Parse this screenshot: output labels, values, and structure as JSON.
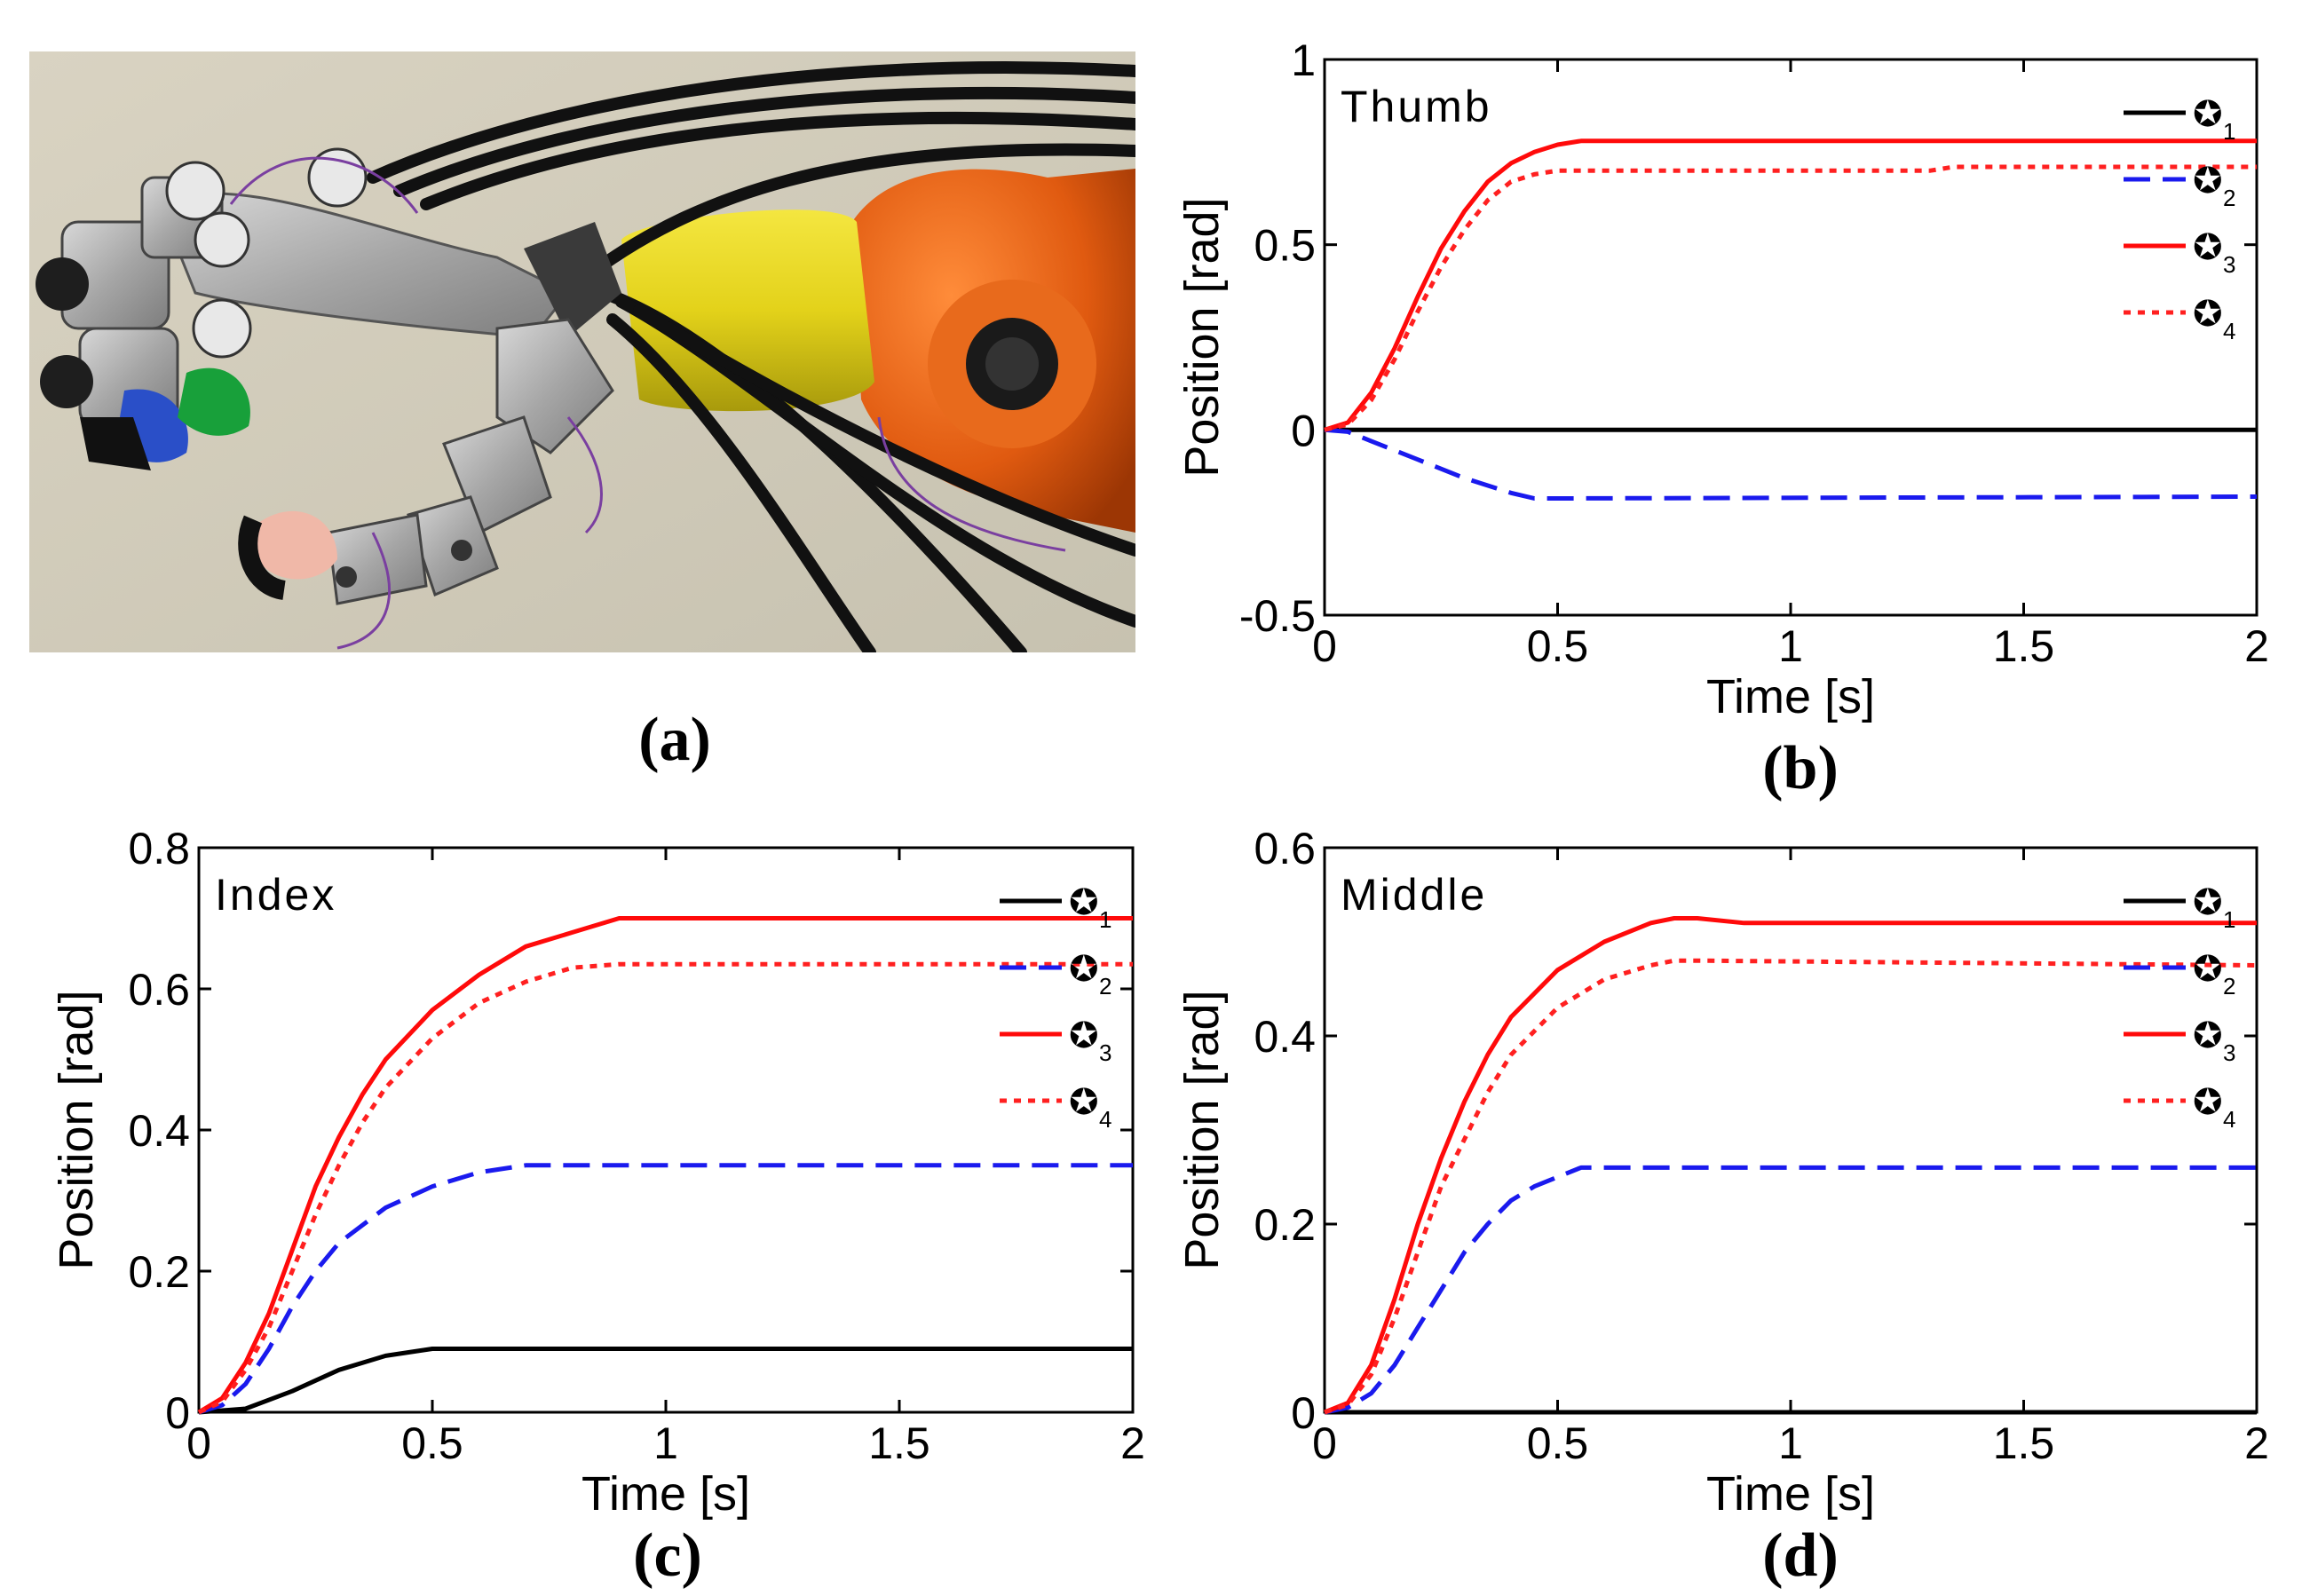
{
  "panel_labels": {
    "a": "(a)",
    "b": "(b)",
    "c": "(c)",
    "d": "(d)"
  },
  "photo": {
    "description_icon": "robotic-hand-photo"
  },
  "colors": {
    "black": "#000000",
    "blue": "#1a1aee",
    "red": "#ff0a0a",
    "red_dot": "#ff2020"
  },
  "legend_symbols": [
    {
      "symbol": "✪",
      "subscript": "1"
    },
    {
      "symbol": "✪",
      "subscript": "2"
    },
    {
      "symbol": "✪",
      "subscript": "3"
    },
    {
      "symbol": "✪",
      "subscript": "4"
    }
  ],
  "chart_data": [
    {
      "type": "line",
      "id": "b",
      "annotation": "Thumb",
      "xlabel": "Time [s]",
      "ylabel": "Position [rad]",
      "xlim": [
        0,
        2
      ],
      "ylim": [
        -0.5,
        1
      ],
      "xticks": [
        0,
        0.5,
        1,
        1.5,
        2
      ],
      "xtick_labels": [
        "0",
        "0.5",
        "1",
        "1.5",
        "2"
      ],
      "yticks": [
        -0.5,
        0,
        0.5,
        1
      ],
      "ytick_labels": [
        "-0.5",
        "0",
        "0.5",
        "1"
      ],
      "legend_position": "top-right",
      "series": [
        {
          "style": "solid",
          "color": "#000000",
          "x": [
            0,
            2
          ],
          "y": [
            0,
            0
          ]
        },
        {
          "style": "dashed",
          "color": "#1a1aee",
          "x": [
            0,
            0.05,
            0.1,
            0.2,
            0.3,
            0.4,
            0.45,
            0.5,
            2
          ],
          "y": [
            0,
            -0.005,
            -0.03,
            -0.08,
            -0.13,
            -0.17,
            -0.185,
            -0.185,
            -0.18
          ]
        },
        {
          "style": "solid",
          "color": "#ff0a0a",
          "x": [
            0,
            0.05,
            0.1,
            0.15,
            0.2,
            0.25,
            0.3,
            0.35,
            0.4,
            0.45,
            0.5,
            0.55,
            0.6,
            0.65,
            2
          ],
          "y": [
            0,
            0.02,
            0.1,
            0.22,
            0.36,
            0.49,
            0.59,
            0.67,
            0.72,
            0.75,
            0.77,
            0.78,
            0.78,
            0.78,
            0.78
          ]
        },
        {
          "style": "dotted",
          "color": "#ff2020",
          "x": [
            0,
            0.05,
            0.1,
            0.15,
            0.2,
            0.25,
            0.3,
            0.35,
            0.4,
            0.45,
            0.5,
            0.55,
            0.6,
            1.3,
            1.35,
            2
          ],
          "y": [
            0,
            0.015,
            0.08,
            0.19,
            0.32,
            0.44,
            0.54,
            0.62,
            0.67,
            0.69,
            0.7,
            0.7,
            0.7,
            0.7,
            0.71,
            0.71
          ]
        }
      ]
    },
    {
      "type": "line",
      "id": "c",
      "annotation": "Index",
      "xlabel": "Time [s]",
      "ylabel": "Position [rad]",
      "xlim": [
        0,
        2
      ],
      "ylim": [
        0,
        0.8
      ],
      "xticks": [
        0,
        0.5,
        1,
        1.5,
        2
      ],
      "xtick_labels": [
        "0",
        "0.5",
        "1",
        "1.5",
        "2"
      ],
      "yticks": [
        0,
        0.2,
        0.4,
        0.6,
        0.8
      ],
      "ytick_labels": [
        "0",
        "0.2",
        "0.4",
        "0.6",
        "0.8"
      ],
      "legend_position": "top-right",
      "series": [
        {
          "style": "solid",
          "color": "#000000",
          "x": [
            0,
            0.1,
            0.2,
            0.3,
            0.4,
            0.5,
            2
          ],
          "y": [
            0,
            0.005,
            0.03,
            0.06,
            0.08,
            0.09,
            0.09
          ]
        },
        {
          "style": "dashed",
          "color": "#1a1aee",
          "x": [
            0,
            0.05,
            0.1,
            0.15,
            0.2,
            0.25,
            0.3,
            0.4,
            0.5,
            0.6,
            0.7,
            0.8,
            0.9,
            1,
            2
          ],
          "y": [
            0,
            0.01,
            0.04,
            0.09,
            0.15,
            0.2,
            0.24,
            0.29,
            0.32,
            0.34,
            0.35,
            0.35,
            0.35,
            0.35,
            0.35
          ]
        },
        {
          "style": "solid",
          "color": "#ff0a0a",
          "x": [
            0,
            0.05,
            0.1,
            0.15,
            0.2,
            0.25,
            0.3,
            0.35,
            0.4,
            0.5,
            0.6,
            0.7,
            0.8,
            0.9,
            0.95,
            1,
            2
          ],
          "y": [
            0,
            0.02,
            0.07,
            0.14,
            0.23,
            0.32,
            0.39,
            0.45,
            0.5,
            0.57,
            0.62,
            0.66,
            0.68,
            0.7,
            0.7,
            0.7,
            0.7
          ]
        },
        {
          "style": "dotted",
          "color": "#ff2020",
          "x": [
            0,
            0.05,
            0.1,
            0.15,
            0.2,
            0.25,
            0.3,
            0.35,
            0.4,
            0.5,
            0.6,
            0.7,
            0.8,
            0.9,
            1,
            2
          ],
          "y": [
            0,
            0.015,
            0.06,
            0.12,
            0.2,
            0.28,
            0.35,
            0.41,
            0.46,
            0.53,
            0.58,
            0.61,
            0.63,
            0.635,
            0.635,
            0.635
          ]
        }
      ]
    },
    {
      "type": "line",
      "id": "d",
      "annotation": "Middle",
      "xlabel": "Time [s]",
      "ylabel": "Position [rad]",
      "xlim": [
        0,
        2
      ],
      "ylim": [
        0,
        0.6
      ],
      "xticks": [
        0,
        0.5,
        1,
        1.5,
        2
      ],
      "xtick_labels": [
        "0",
        "0.5",
        "1",
        "1.5",
        "2"
      ],
      "yticks": [
        0,
        0.2,
        0.4,
        0.6
      ],
      "ytick_labels": [
        "0",
        "0.2",
        "0.4",
        "0.6"
      ],
      "legend_position": "top-right",
      "series": [
        {
          "style": "solid",
          "color": "#000000",
          "x": [
            0,
            2
          ],
          "y": [
            0,
            0
          ]
        },
        {
          "style": "dashed",
          "color": "#1a1aee",
          "x": [
            0,
            0.05,
            0.1,
            0.15,
            0.2,
            0.25,
            0.3,
            0.35,
            0.4,
            0.45,
            0.5,
            0.55,
            0.6,
            2
          ],
          "y": [
            0,
            0.005,
            0.02,
            0.05,
            0.09,
            0.13,
            0.17,
            0.2,
            0.225,
            0.24,
            0.25,
            0.26,
            0.26,
            0.26
          ]
        },
        {
          "style": "solid",
          "color": "#ff0a0a",
          "x": [
            0,
            0.05,
            0.1,
            0.15,
            0.2,
            0.25,
            0.3,
            0.35,
            0.4,
            0.5,
            0.6,
            0.7,
            0.75,
            0.8,
            0.9,
            1,
            2
          ],
          "y": [
            0,
            0.01,
            0.05,
            0.12,
            0.2,
            0.27,
            0.33,
            0.38,
            0.42,
            0.47,
            0.5,
            0.52,
            0.525,
            0.525,
            0.52,
            0.52,
            0.52
          ]
        },
        {
          "style": "dotted",
          "color": "#ff2020",
          "x": [
            0,
            0.05,
            0.1,
            0.15,
            0.2,
            0.25,
            0.3,
            0.35,
            0.4,
            0.5,
            0.6,
            0.7,
            0.75,
            0.8,
            2
          ],
          "y": [
            0,
            0.008,
            0.04,
            0.1,
            0.17,
            0.24,
            0.29,
            0.34,
            0.38,
            0.43,
            0.46,
            0.475,
            0.48,
            0.48,
            0.475
          ]
        }
      ]
    }
  ]
}
